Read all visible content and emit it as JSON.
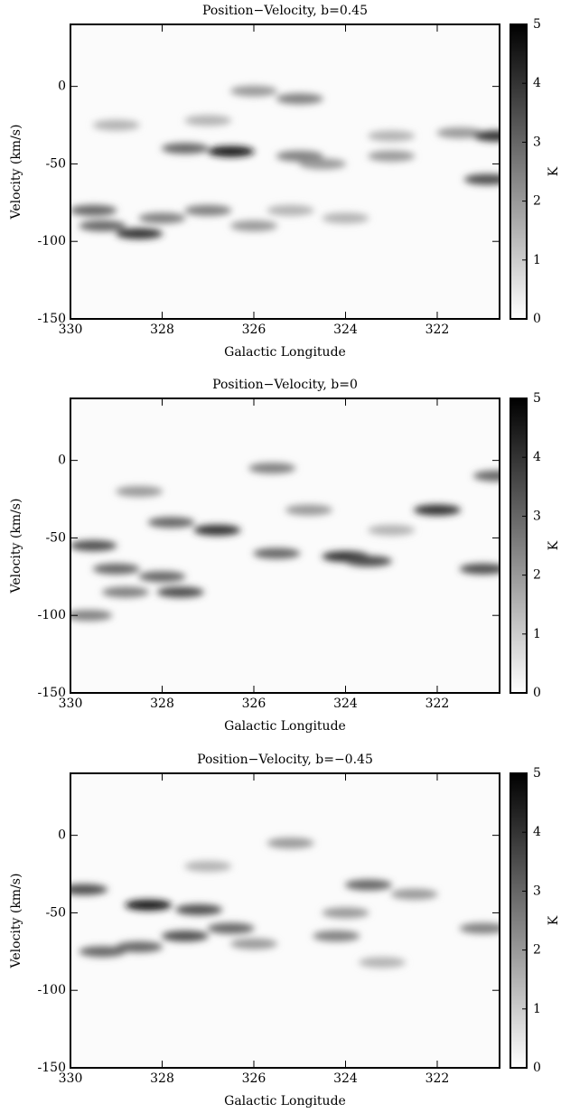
{
  "chart_data": [
    {
      "type": "heatmap",
      "title": "Position−Velocity, b=0.45",
      "x_label": "Galactic Longitude",
      "y_label": "Velocity (km/s)",
      "colorbar_label": "K",
      "xlim": [
        330,
        320.64
      ],
      "ylim": [
        -150,
        40
      ],
      "xticks": [
        330,
        328,
        326,
        324,
        322
      ],
      "yticks": [
        -150,
        -100,
        -50,
        0
      ],
      "zlim": [
        0,
        5
      ],
      "zticks": [
        0,
        1,
        2,
        3,
        4,
        5
      ],
      "x": [
        326.5,
        327.5,
        328.5,
        329.3,
        329.5,
        328,
        327,
        325,
        324.5,
        323,
        321.5,
        320.9,
        320.7,
        325,
        326,
        327,
        324,
        329,
        323,
        326,
        325.2
      ],
      "y": [
        -42,
        -40,
        -95,
        -90,
        -80,
        -85,
        -80,
        -45,
        -50,
        -45,
        -30,
        -60,
        -32,
        -8,
        -3,
        -22,
        -85,
        -25,
        -32,
        -90,
        -80
      ],
      "values": [
        4.5,
        3,
        4,
        3,
        3,
        2.5,
        2.5,
        2.5,
        2,
        2,
        2,
        3.5,
        4,
        2.5,
        2,
        1.5,
        1.5,
        1.5,
        1.5,
        2,
        1.5
      ]
    },
    {
      "type": "heatmap",
      "title": "Position−Velocity, b=0",
      "x_label": "Galactic Longitude",
      "y_label": "Velocity (km/s)",
      "colorbar_label": "K",
      "xlim": [
        330,
        320.64
      ],
      "ylim": [
        -150,
        40
      ],
      "xticks": [
        330,
        328,
        326,
        324,
        322
      ],
      "yticks": [
        -150,
        -100,
        -50,
        0
      ],
      "zlim": [
        0,
        5
      ],
      "zticks": [
        0,
        1,
        2,
        3,
        4,
        5
      ],
      "x": [
        326.8,
        327.8,
        329.5,
        329,
        328,
        327.6,
        329.6,
        324,
        323.5,
        325.5,
        322,
        321,
        320.7,
        325.6,
        328.5,
        324.8,
        323,
        328.8
      ],
      "y": [
        -45,
        -40,
        -55,
        -70,
        -75,
        -85,
        -100,
        -62,
        -65,
        -60,
        -32,
        -70,
        -10,
        -5,
        -20,
        -32,
        -45,
        -85
      ],
      "values": [
        4,
        3,
        3.5,
        3,
        3,
        3.5,
        2.5,
        4,
        3.5,
        3,
        4,
        3.5,
        3,
        2.5,
        2,
        2,
        1.5,
        2.5
      ]
    },
    {
      "type": "heatmap",
      "title": "Position−Velocity, b=−0.45",
      "x_label": "Galactic Longitude",
      "y_label": "Velocity (km/s)",
      "colorbar_label": "K",
      "xlim": [
        330,
        320.64
      ],
      "ylim": [
        -150,
        40
      ],
      "xticks": [
        330,
        328,
        326,
        324,
        322
      ],
      "yticks": [
        -150,
        -100,
        -50,
        0
      ],
      "zlim": [
        0,
        5
      ],
      "zticks": [
        0,
        1,
        2,
        3,
        4,
        5
      ],
      "x": [
        328.3,
        329.7,
        327.2,
        327.5,
        328.5,
        329.3,
        326.5,
        323.5,
        324,
        324.2,
        321,
        326,
        325.2,
        322.5,
        323.2,
        327
      ],
      "y": [
        -45,
        -35,
        -48,
        -65,
        -72,
        -75,
        -60,
        -32,
        -50,
        -65,
        -60,
        -70,
        -5,
        -38,
        -82,
        -20
      ],
      "values": [
        4.5,
        3.5,
        3.5,
        3.5,
        3,
        3,
        3,
        3,
        2,
        2.5,
        2.5,
        2,
        2,
        2,
        1.5,
        1.5
      ]
    }
  ]
}
